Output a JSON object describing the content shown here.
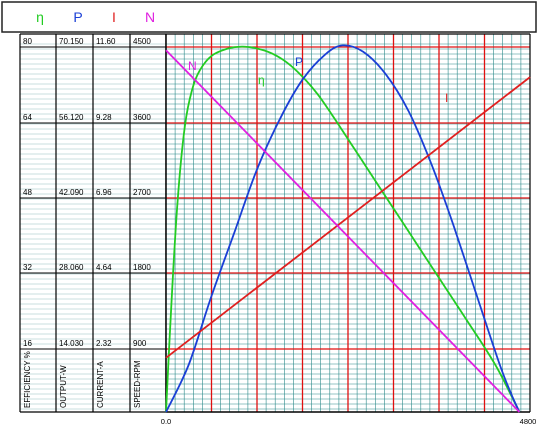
{
  "chart_data": {
    "type": "line",
    "title": "",
    "legend": {
      "placement": "top-left",
      "entries": [
        {
          "label": "η",
          "color": "#22cc22"
        },
        {
          "label": "P",
          "color": "#1a3fd6"
        },
        {
          "label": "I",
          "color": "#e02020"
        },
        {
          "label": "N",
          "color": "#e020e0"
        }
      ]
    },
    "x_axis": {
      "min": 0,
      "max": 4800,
      "tick_labels": [
        "0.0",
        "4800"
      ],
      "major_step": 600,
      "minor_step": 120
    },
    "columns": [
      {
        "key": "efficiency",
        "label": "EFFICIENCY %",
        "ticks": [
          "80",
          "64",
          "48",
          "32",
          "16"
        ]
      },
      {
        "key": "output",
        "label": "OUTPUT-W",
        "ticks": [
          "70.150",
          "56.120",
          "42.090",
          "28.060",
          "14.030"
        ]
      },
      {
        "key": "current",
        "label": "CURRENT-A",
        "ticks": [
          "11.60",
          "9.28",
          "6.96",
          "4.64",
          "2.32"
        ]
      },
      {
        "key": "speed",
        "label": "SPEED-RPM",
        "ticks": [
          "4500",
          "3600",
          "2700",
          "1800",
          "900"
        ]
      }
    ],
    "grid": true,
    "series": [
      {
        "name": "η",
        "label": "η",
        "axis": "efficiency",
        "color": "#22cc22",
        "x": [
          0,
          60,
          150,
          250,
          350,
          450,
          600,
          800,
          1000,
          1200,
          1400,
          1600,
          1800,
          2000,
          2200,
          2400,
          2600,
          2800,
          3000,
          3200,
          3400,
          3600,
          3800,
          4000,
          4200,
          4400,
          4660
        ],
        "y": [
          0,
          20,
          45,
          62,
          70,
          74,
          77,
          78.5,
          79,
          78.6,
          77.5,
          75.5,
          72.5,
          68.7,
          64,
          59,
          54,
          49,
          44,
          39,
          34,
          29,
          24,
          19,
          14,
          8.5,
          0
        ]
      },
      {
        "name": "P",
        "label": "P",
        "axis": "output",
        "color": "#1a3fd6",
        "x": [
          0,
          300,
          600,
          900,
          1200,
          1500,
          1800,
          2100,
          2330,
          2600,
          2900,
          3200,
          3500,
          3800,
          4100,
          4400,
          4550,
          4660
        ],
        "y": [
          0,
          9,
          22,
          34,
          46,
          55.5,
          63,
          67.8,
          69.5,
          68.3,
          64,
          57,
          47,
          35,
          22,
          9,
          3.5,
          0
        ]
      },
      {
        "name": "I",
        "label": "I",
        "axis": "current",
        "color": "#e02020",
        "x": [
          0,
          4800
        ],
        "y": [
          1.7,
          10.5
        ]
      },
      {
        "name": "N",
        "label": "N",
        "axis": "speed",
        "color": "#e020e0",
        "x": [
          0,
          4660
        ],
        "y": [
          4400,
          0
        ]
      }
    ]
  }
}
